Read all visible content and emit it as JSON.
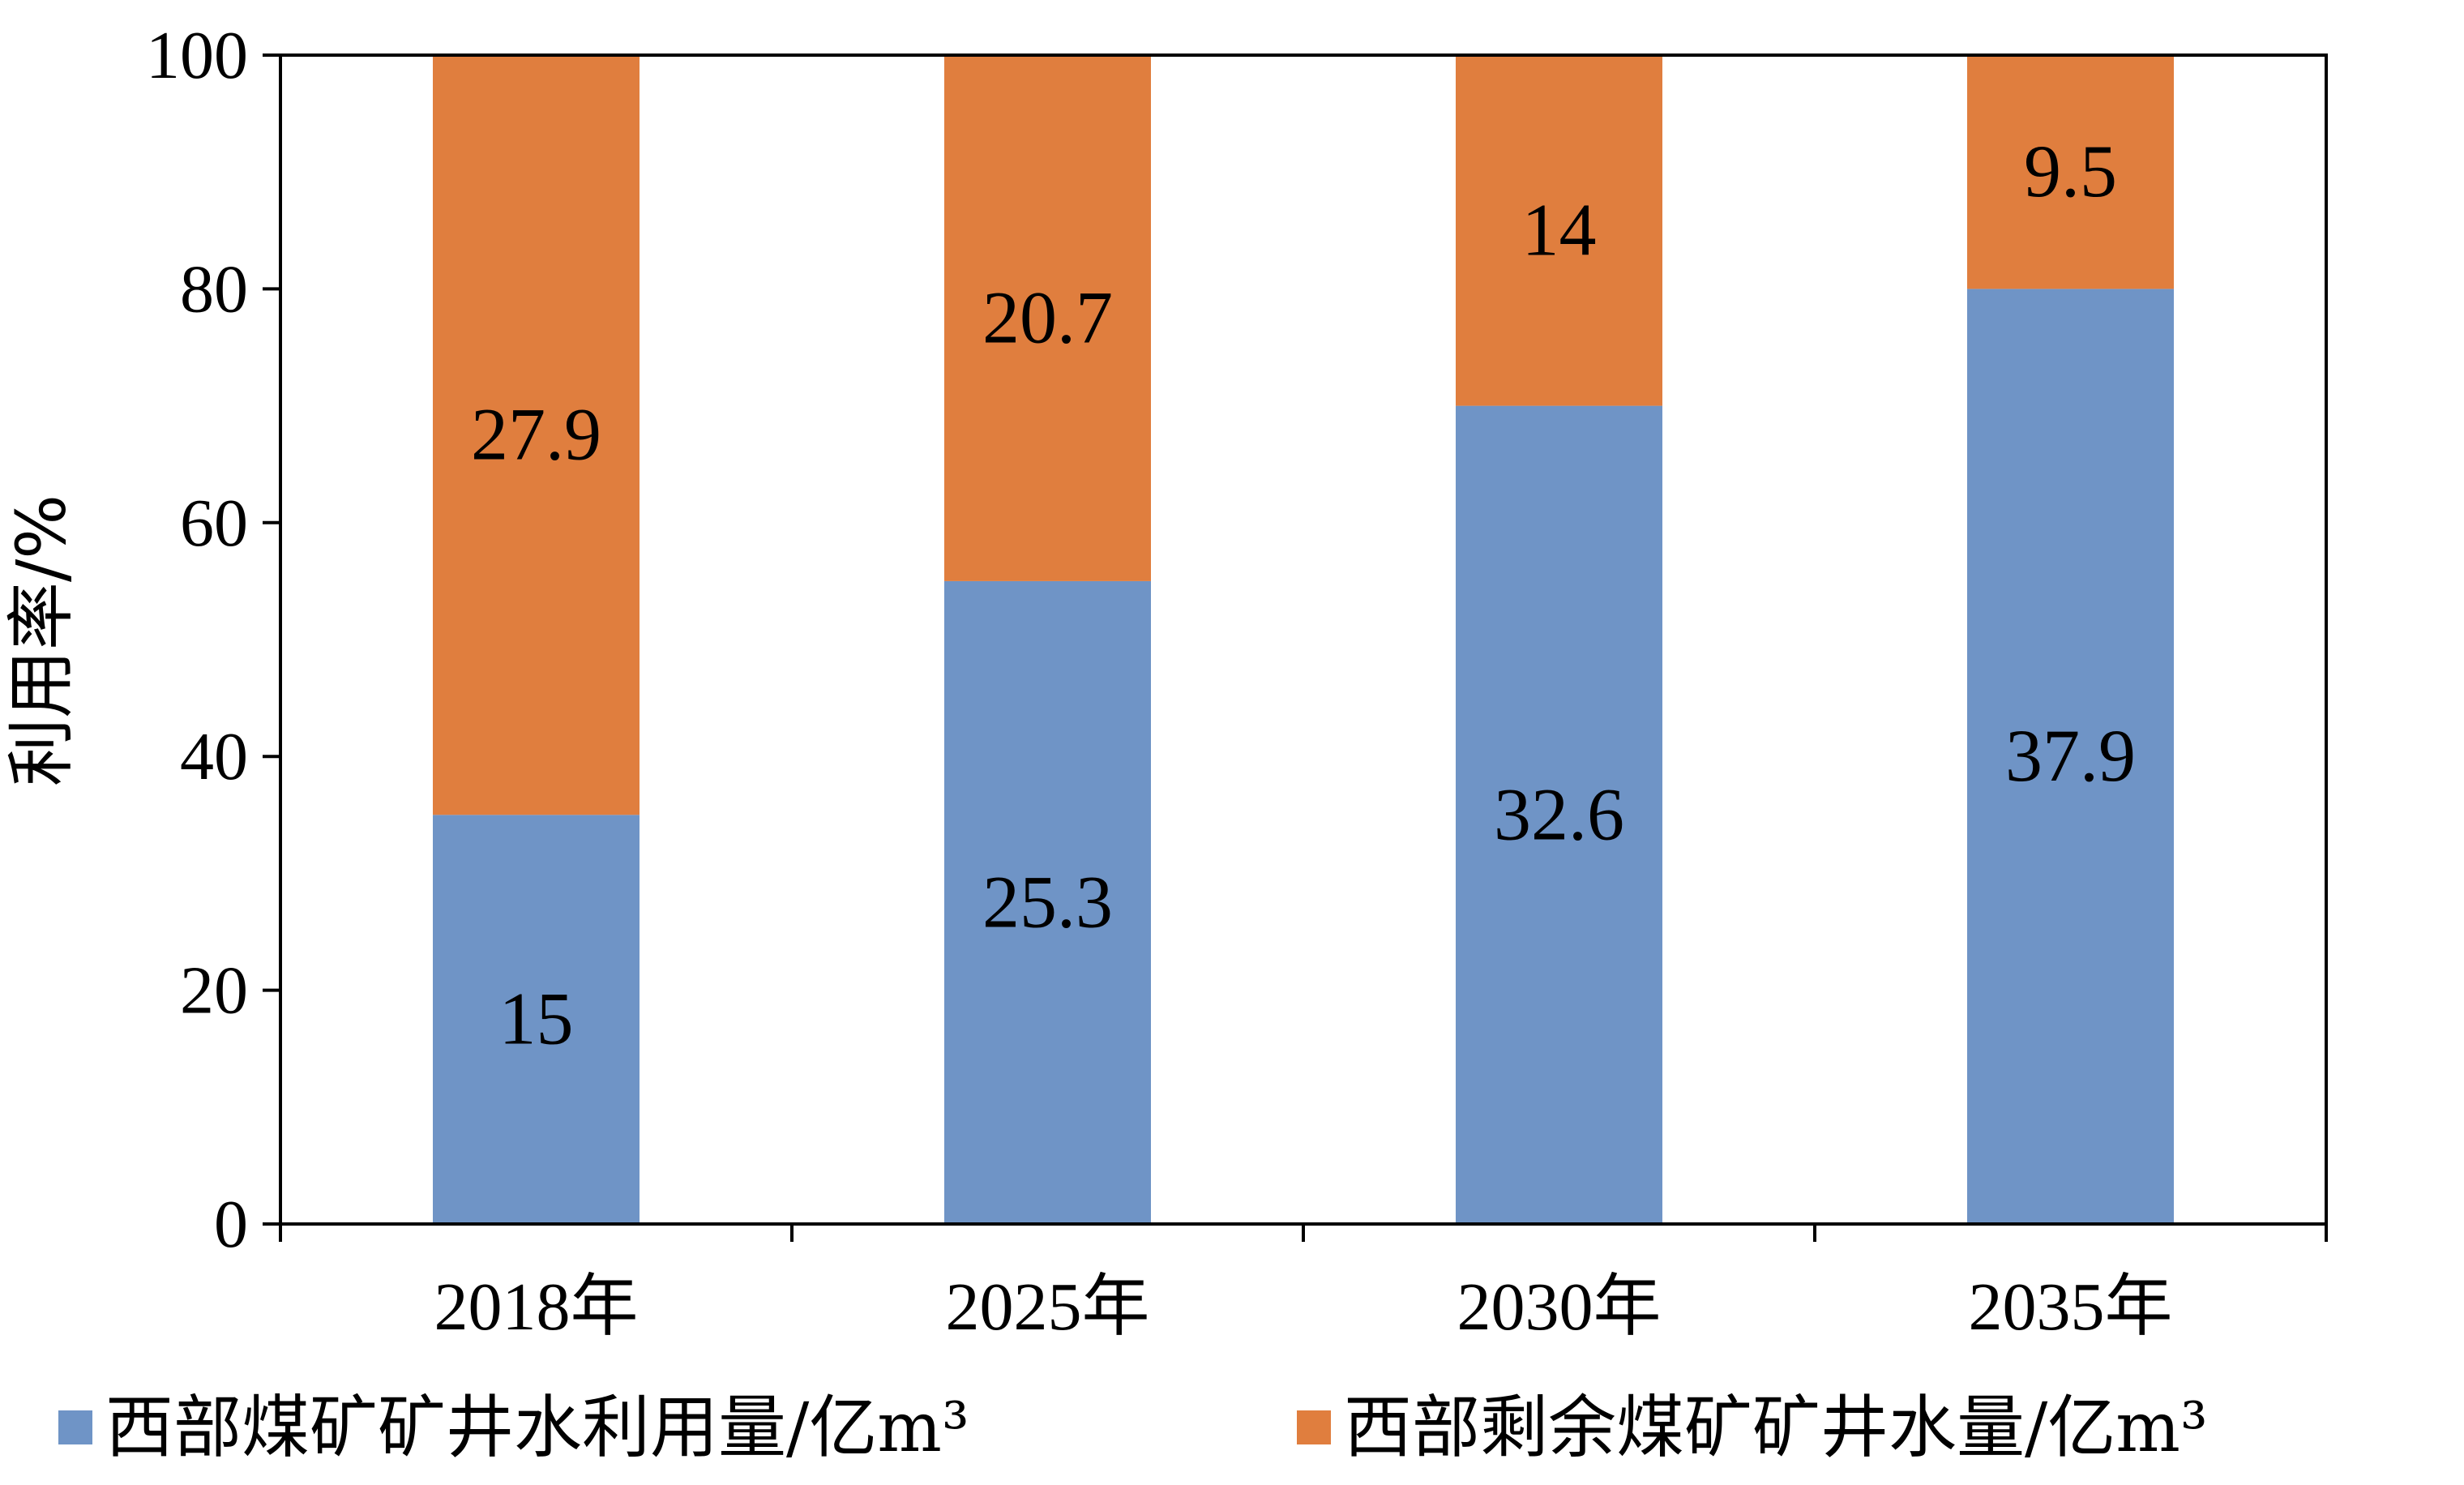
{
  "chart_data": {
    "type": "bar",
    "stacked": true,
    "categories": [
      "2018年",
      "2025年",
      "2030年",
      "2035年"
    ],
    "series": [
      {
        "name": "西部煤矿矿井水利用量/亿m³",
        "color": "#6F94C6",
        "values": [
          35,
          55,
          70,
          80
        ],
        "labels": [
          "15",
          "25.3",
          "32.6",
          "37.9"
        ]
      },
      {
        "name": "西部剩余煤矿矿井水量/亿m³",
        "color": "#E07E3E",
        "values": [
          65,
          45,
          30,
          20
        ],
        "labels": [
          "27.9",
          "20.7",
          "14",
          "9.5"
        ]
      }
    ],
    "ylabel": "利用率/%",
    "xlabel": "",
    "ylim": [
      0,
      100
    ],
    "yticks": [
      "0",
      "20",
      "40",
      "60",
      "80",
      "100"
    ],
    "grid": false,
    "legend": "bottom"
  }
}
